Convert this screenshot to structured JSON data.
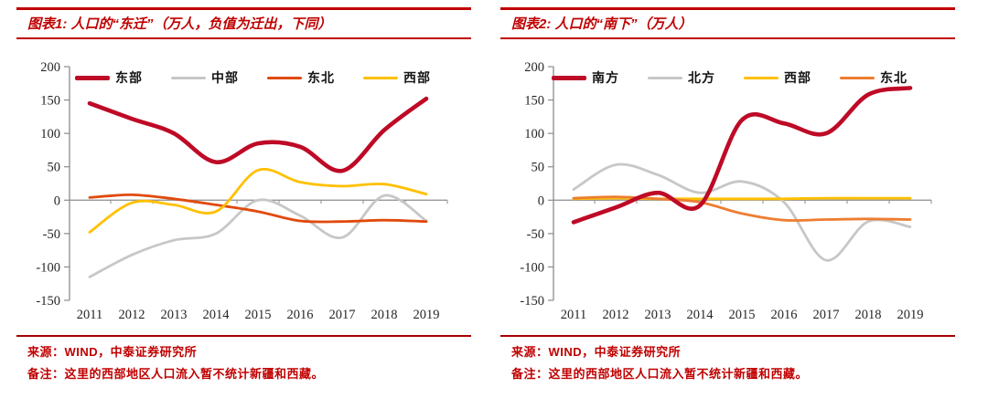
{
  "colors": {
    "header_red": "#c00000",
    "footer_rule_red": "#a50000",
    "footer_text_red": "#c00000",
    "axis_gray": "#8c8c8c",
    "tick_text": "#262626",
    "crimson": "#be0a26",
    "line_gray": "#c7c7c7",
    "orange_red": "#e04a0c",
    "gold": "#ffc000",
    "orange": "#ed7d31"
  },
  "panels": [
    {
      "title": "图表1: 人口的“东迁”（万人，负值为迁出，下同）",
      "source": "来源：WIND，中泰证券研究所",
      "note": "备注：这里的西部地区人口流入暂不统计新疆和西藏。"
    },
    {
      "title": "图表2: 人口的“南下”（万人）",
      "source": "来源：WIND，中泰证券研究所",
      "note": "备注：这里的西部地区人口流入暂不统计新疆和西藏。"
    }
  ],
  "chart_data": [
    {
      "type": "line",
      "title": "图表1: 人口的“东迁”（万人，负值为迁出，下同）",
      "x": [
        2011,
        2012,
        2013,
        2014,
        2015,
        2016,
        2017,
        2018,
        2019
      ],
      "ylim": [
        -150,
        200
      ],
      "yticks": [
        200,
        150,
        100,
        50,
        0,
        -50,
        -100,
        -150
      ],
      "grid": false,
      "legend_position": "top",
      "series": [
        {
          "name": "东部",
          "color": "#be0a26",
          "width": 4.6,
          "values": [
            145,
            122,
            100,
            57,
            85,
            80,
            44,
            105,
            152
          ]
        },
        {
          "name": "中部",
          "color": "#c7c7c7",
          "width": 2.8,
          "values": [
            -115,
            -82,
            -60,
            -50,
            0,
            -23,
            -56,
            7,
            -31
          ]
        },
        {
          "name": "东北",
          "color": "#e04a0c",
          "width": 2.8,
          "values": [
            4,
            8,
            2,
            -7,
            -17,
            -31,
            -32,
            -30,
            -32
          ]
        },
        {
          "name": "西部",
          "color": "#ffc000",
          "width": 2.8,
          "values": [
            -48,
            -4,
            -7,
            -17,
            45,
            27,
            21,
            24,
            9
          ]
        }
      ]
    },
    {
      "type": "line",
      "title": "图表2: 人口的“南下”（万人）",
      "x": [
        2011,
        2012,
        2013,
        2014,
        2015,
        2016,
        2017,
        2018,
        2019
      ],
      "ylim": [
        -150,
        200
      ],
      "yticks": [
        200,
        150,
        100,
        50,
        0,
        -50,
        -100,
        -150
      ],
      "grid": false,
      "legend_position": "top",
      "series": [
        {
          "name": "南方",
          "color": "#be0a26",
          "width": 4.6,
          "values": [
            -33,
            -11,
            11,
            -8,
            120,
            115,
            100,
            158,
            168
          ]
        },
        {
          "name": "北方",
          "color": "#c7c7c7",
          "width": 2.8,
          "values": [
            16,
            53,
            38,
            11,
            28,
            -3,
            -90,
            -32,
            -40
          ]
        },
        {
          "name": "西部",
          "color": "#ffc000",
          "width": 2.8,
          "values": [
            2,
            3,
            2,
            2,
            2,
            2,
            3,
            3,
            3
          ]
        },
        {
          "name": "东北",
          "color": "#ed7d31",
          "width": 2.8,
          "values": [
            3,
            5,
            2,
            -3,
            -20,
            -30,
            -29,
            -28,
            -29
          ]
        }
      ]
    }
  ]
}
